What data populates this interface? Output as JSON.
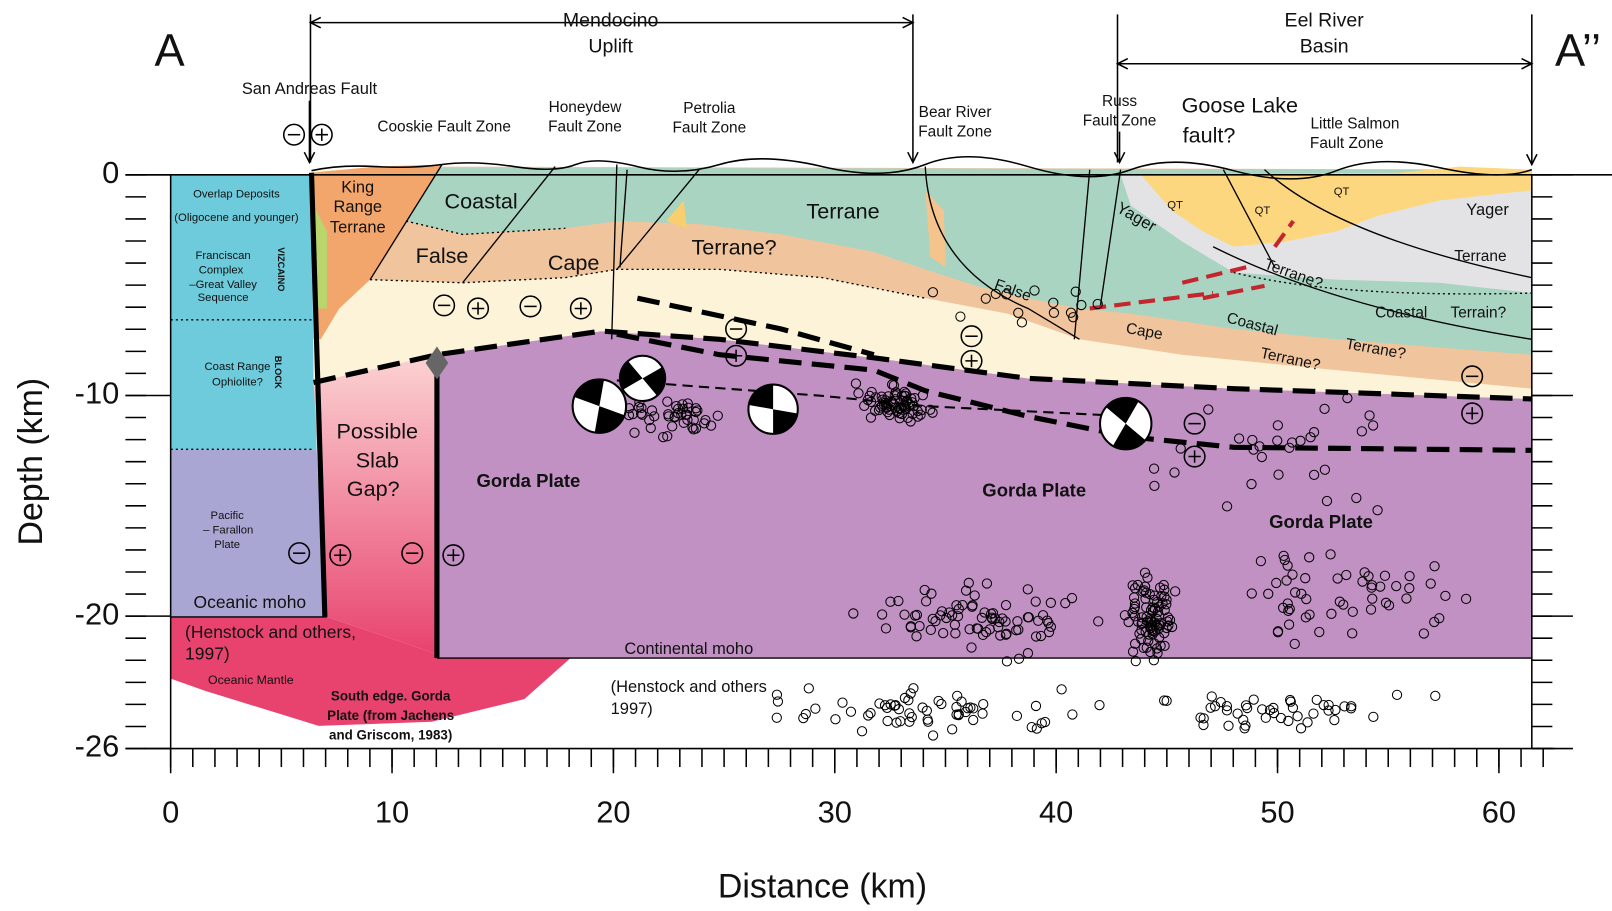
{
  "labels": [
    "A",
    "A’’",
    "Mendocino",
    "Uplift",
    "Eel River",
    "Basin",
    "San Andreas Fault",
    "Cooskie Fault Zone",
    "Honeydew",
    "Fault  Zone",
    "Petrolia",
    "Fault Zone",
    "Bear River",
    "Fault Zone",
    "Russ",
    "Fault Zone",
    "Goose Lake",
    "fault?",
    "Little Salmon",
    "Fault Zone",
    "Overlap Deposits",
    "(Oligocene and younger)",
    "Franciscan",
    "Complex",
    "–Great Valley",
    "Sequence",
    "VIZCAINO",
    "BLOCK",
    "Coast Range",
    "Ophiolite?",
    "Pacific",
    "– Farallon",
    "Plate",
    "Oceanic moho",
    "(Henstock and others,",
    "1997)",
    "Oceanic Mantle",
    "King",
    "Range",
    "Terrane",
    "Coastal",
    "Terrane",
    "False",
    "Cape",
    "Terrane?",
    "Possible",
    "Slab",
    "Gap?",
    "Gorda Plate",
    "Gorda Plate",
    "Gorda Plate",
    "South edge. Gorda",
    "Plate (from Jachens",
    "and Griscom, 1983)",
    "Continental moho",
    "(Henstock and others",
    "1997)",
    "QT",
    "QT",
    "QT",
    "Yager",
    "Yager",
    "Terrane",
    "Terrane?",
    "Coastal",
    "Terrain?",
    "False",
    "Cape",
    "Coastal",
    "Terrane?",
    "Terrane?"
  ],
  "axes": {
    "x": {
      "title": "Distance (km)",
      "lim": [
        0,
        62
      ],
      "ticks": [
        0,
        10,
        20,
        30,
        40,
        50,
        60
      ]
    },
    "y": {
      "title": "Depth (km)",
      "lim": [
        -26,
        0
      ],
      "ticks": [
        0,
        -10,
        -20,
        -26
      ]
    }
  }
}
